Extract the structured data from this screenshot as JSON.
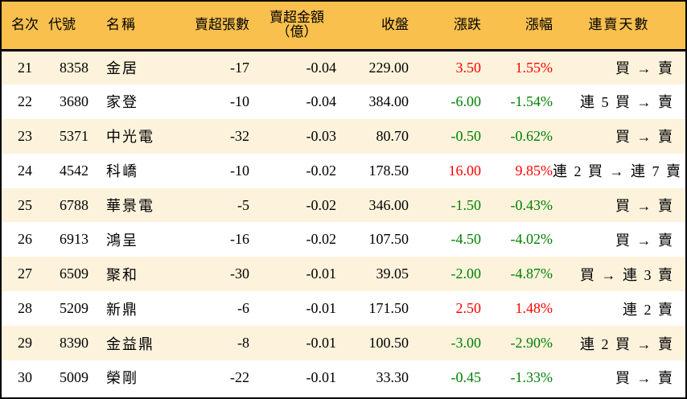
{
  "colors": {
    "header_bg": "#F9C04E",
    "row_alt_bg": "#FDF3DC",
    "row_bg": "#FFFFFF",
    "up": "#FF0000",
    "down": "#008000"
  },
  "headers": {
    "rank": "名次",
    "code": "代號",
    "name": "名稱",
    "net_sell_sheets": "賣超張數",
    "net_sell_amount_line1": "賣超金額",
    "net_sell_amount_line2": "（億）",
    "close": "收盤",
    "change": "漲跌",
    "change_pct": "漲幅",
    "streak": "連賣天數"
  },
  "rows": [
    {
      "rank": "21",
      "code": "8358",
      "name": "金居",
      "sheets": "-17",
      "amount": "-0.04",
      "close": "229.00",
      "change": "3.50",
      "pct": "1.55%",
      "dir": "up",
      "streak": "買 → 賣"
    },
    {
      "rank": "22",
      "code": "3680",
      "name": "家登",
      "sheets": "-10",
      "amount": "-0.04",
      "close": "384.00",
      "change": "-6.00",
      "pct": "-1.54%",
      "dir": "down",
      "streak": "連 5 買 → 賣"
    },
    {
      "rank": "23",
      "code": "5371",
      "name": "中光電",
      "sheets": "-32",
      "amount": "-0.03",
      "close": "80.70",
      "change": "-0.50",
      "pct": "-0.62%",
      "dir": "down",
      "streak": "買 → 賣"
    },
    {
      "rank": "24",
      "code": "4542",
      "name": "科嶠",
      "sheets": "-10",
      "amount": "-0.02",
      "close": "178.50",
      "change": "16.00",
      "pct": "9.85%",
      "dir": "up",
      "streak": "連 2 買 → 連 7 賣"
    },
    {
      "rank": "25",
      "code": "6788",
      "name": "華景電",
      "sheets": "-5",
      "amount": "-0.02",
      "close": "346.00",
      "change": "-1.50",
      "pct": "-0.43%",
      "dir": "down",
      "streak": "買 → 賣"
    },
    {
      "rank": "26",
      "code": "6913",
      "name": "鴻呈",
      "sheets": "-16",
      "amount": "-0.02",
      "close": "107.50",
      "change": "-4.50",
      "pct": "-4.02%",
      "dir": "down",
      "streak": "買 → 賣"
    },
    {
      "rank": "27",
      "code": "6509",
      "name": "聚和",
      "sheets": "-30",
      "amount": "-0.01",
      "close": "39.05",
      "change": "-2.00",
      "pct": "-4.87%",
      "dir": "down",
      "streak": "買 → 連 3 賣"
    },
    {
      "rank": "28",
      "code": "5209",
      "name": "新鼎",
      "sheets": "-6",
      "amount": "-0.01",
      "close": "171.50",
      "change": "2.50",
      "pct": "1.48%",
      "dir": "up",
      "streak": "連 2 賣"
    },
    {
      "rank": "29",
      "code": "8390",
      "name": "金益鼎",
      "sheets": "-8",
      "amount": "-0.01",
      "close": "100.50",
      "change": "-3.00",
      "pct": "-2.90%",
      "dir": "down",
      "streak": "連 2 買 → 賣"
    },
    {
      "rank": "30",
      "code": "5009",
      "name": "榮剛",
      "sheets": "-22",
      "amount": "-0.01",
      "close": "33.30",
      "change": "-0.45",
      "pct": "-1.33%",
      "dir": "down",
      "streak": "買 → 賣"
    }
  ]
}
